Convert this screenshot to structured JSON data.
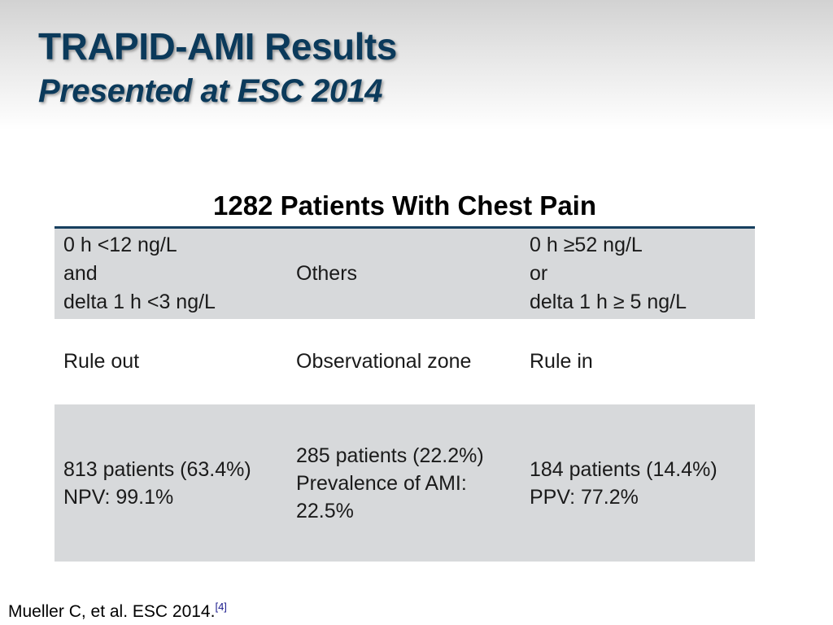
{
  "slide": {
    "title": "TRAPID-AMI Results",
    "subtitle": "Presented at ESC 2014"
  },
  "table": {
    "heading": "1282 Patients With Chest Pain",
    "rows": [
      {
        "cells": [
          "0 h <12 ng/L\nand\ndelta 1 h <3 ng/L",
          "Others",
          "0 h ≥52 ng/L\nor\ndelta 1 h ≥ 5 ng/L"
        ]
      },
      {
        "cells": [
          "Rule out",
          "Observational zone",
          "Rule in"
        ]
      },
      {
        "cells": [
          "813 patients (63.4%)\nNPV: 99.1%",
          "285 patients (22.2%)\nPrevalence of AMI:\n22.5%",
          "184 patients (14.4%)\nPPV: 77.2%"
        ]
      }
    ]
  },
  "footnote": {
    "text": "Mueller C, et al. ESC 2014.",
    "ref": "[4]"
  },
  "colors": {
    "title": "#0b3a5b",
    "table_rule": "#173f5f",
    "shaded_row": "#d7d9db"
  }
}
